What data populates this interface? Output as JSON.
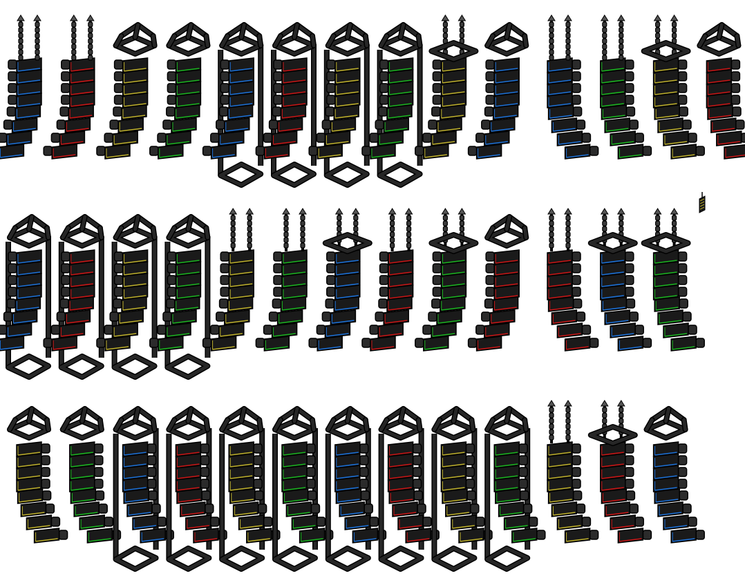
{
  "sheet": {
    "name": "line-array-speaker-sprite-sheet",
    "colors": {
      "body": "#1a1a1a",
      "body_light": "#2b2b2b",
      "outline": "#000000",
      "frame": "#262626",
      "chain": "#3a3a3a",
      "blue": "#1a6fd6",
      "red": "#c81414",
      "yellow": "#bcae2a",
      "green": "#19b31f"
    },
    "rows": [
      [
        {
          "mount": "chain",
          "color": "blue",
          "facing": "right"
        },
        {
          "mount": "chain",
          "color": "red",
          "facing": "right"
        },
        {
          "mount": "frame",
          "color": "yellow",
          "facing": "right"
        },
        {
          "mount": "frame",
          "color": "green",
          "facing": "right"
        },
        {
          "mount": "tower",
          "color": "blue",
          "facing": "right"
        },
        {
          "mount": "tower",
          "color": "red",
          "facing": "right"
        },
        {
          "mount": "tower",
          "color": "yellow",
          "facing": "right"
        },
        {
          "mount": "tower",
          "color": "green",
          "facing": "right"
        },
        {
          "mount": "chainbar",
          "color": "yellow",
          "facing": "right"
        },
        {
          "mount": "frame",
          "color": "blue",
          "facing": "right"
        },
        {
          "mount": "chain",
          "color": "blue",
          "facing": "left"
        },
        {
          "mount": "chain",
          "color": "green",
          "facing": "left"
        },
        {
          "mount": "chainbar",
          "color": "yellow",
          "facing": "left"
        },
        {
          "mount": "frame",
          "color": "red",
          "facing": "left"
        }
      ],
      [
        {
          "mount": "tower",
          "color": "blue",
          "facing": "right"
        },
        {
          "mount": "tower",
          "color": "red",
          "facing": "right"
        },
        {
          "mount": "tower",
          "color": "yellow",
          "facing": "right"
        },
        {
          "mount": "tower",
          "color": "green",
          "facing": "right"
        },
        {
          "mount": "chain",
          "color": "yellow",
          "facing": "right"
        },
        {
          "mount": "chain",
          "color": "green",
          "facing": "right"
        },
        {
          "mount": "chainbar",
          "color": "blue",
          "facing": "right"
        },
        {
          "mount": "chain",
          "color": "red",
          "facing": "right"
        },
        {
          "mount": "chainbar",
          "color": "green",
          "facing": "right"
        },
        {
          "mount": "frame",
          "color": "red",
          "facing": "right"
        },
        {
          "mount": "chain",
          "color": "red",
          "facing": "left"
        },
        {
          "mount": "chainbar",
          "color": "blue",
          "facing": "left"
        },
        {
          "mount": "chainbar",
          "color": "green",
          "facing": "left"
        }
      ],
      [
        {
          "mount": "frame",
          "color": "yellow",
          "facing": "left"
        },
        {
          "mount": "frame",
          "color": "green",
          "facing": "left"
        },
        {
          "mount": "tower",
          "color": "blue",
          "facing": "left"
        },
        {
          "mount": "tower",
          "color": "red",
          "facing": "left"
        },
        {
          "mount": "tower",
          "color": "yellow",
          "facing": "left"
        },
        {
          "mount": "tower",
          "color": "green",
          "facing": "left"
        },
        {
          "mount": "tower",
          "color": "blue",
          "facing": "left"
        },
        {
          "mount": "tower",
          "color": "red",
          "facing": "left"
        },
        {
          "mount": "tower",
          "color": "yellow",
          "facing": "left"
        },
        {
          "mount": "tower",
          "color": "green",
          "facing": "left"
        },
        {
          "mount": "chain",
          "color": "yellow",
          "facing": "left"
        },
        {
          "mount": "chainbar",
          "color": "red",
          "facing": "left"
        },
        {
          "mount": "frame",
          "color": "blue",
          "facing": "left"
        }
      ]
    ],
    "extra_sprite": {
      "color": "yellow",
      "mount": "mini"
    }
  }
}
